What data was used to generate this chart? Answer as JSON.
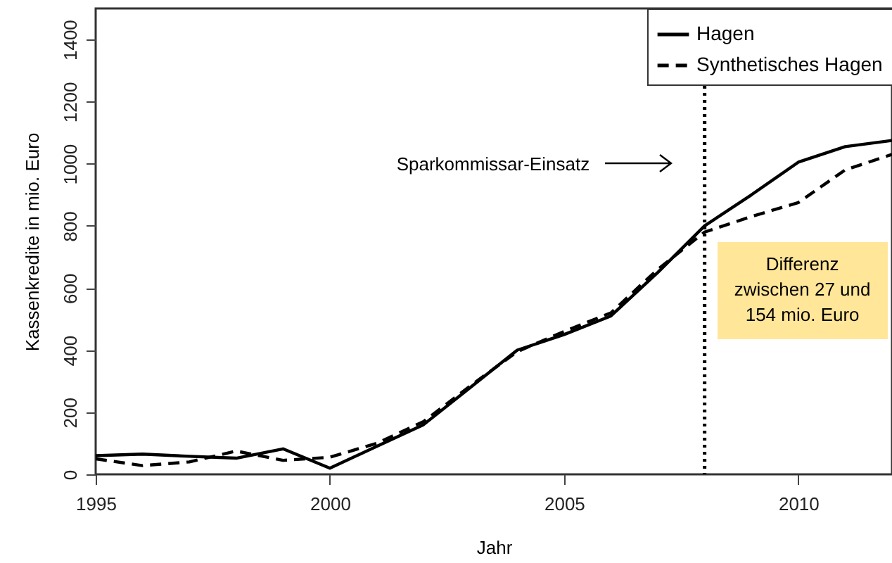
{
  "chart_data": {
    "type": "line",
    "xlabel": "Jahr",
    "ylabel": "Kassenkredite in mio. Euro",
    "x": [
      1995,
      1996,
      1997,
      1998,
      1999,
      2000,
      2001,
      2002,
      2003,
      2004,
      2005,
      2006,
      2007,
      2008,
      2009,
      2010,
      2011,
      2012
    ],
    "series": [
      {
        "name": "Hagen",
        "color": "#000000",
        "line_style": "solid",
        "values": [
          60,
          65,
          58,
          52,
          82,
          20,
          90,
          160,
          280,
          400,
          450,
          510,
          650,
          800,
          900,
          1005,
          1055,
          1075
        ]
      },
      {
        "name": "Synthetisches Hagen",
        "color": "#000000",
        "line_style": "dashed",
        "values": [
          50,
          28,
          40,
          75,
          45,
          55,
          100,
          170,
          285,
          395,
          460,
          520,
          660,
          780,
          830,
          875,
          980,
          1030
        ]
      }
    ],
    "xlim": [
      1995,
      2012
    ],
    "xticks": [
      1995,
      2000,
      2005,
      2010
    ],
    "ylim": [
      0,
      1500
    ],
    "yticks": [
      0,
      200,
      400,
      600,
      800,
      1000,
      1200,
      1400
    ],
    "ref_lines": [
      {
        "axis": "x",
        "value": 2008,
        "color": "#000000",
        "line_style": "dotted"
      }
    ],
    "annotations": [
      "Sparkommissar-Einsatz",
      "Differenz zwischen 27 und 154 mio. Euro"
    ],
    "legend": "top right",
    "grid": false,
    "marker": "none"
  }
}
